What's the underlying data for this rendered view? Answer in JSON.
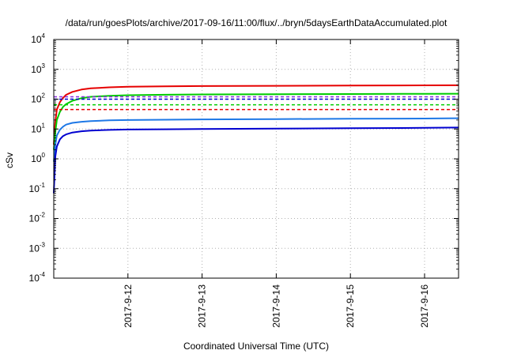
{
  "chart_data": {
    "type": "line",
    "title": "/data/run/goesPlots/archive/2017-09-16/11:00/flux/../bryn/5daysEarthDataAccumulated.plot",
    "xlabel": "Coordinated Universal Time (UTC)",
    "ylabel": "cSv",
    "yscale": "log",
    "ylim": [
      0.0001,
      10000
    ],
    "y_ticks": [
      {
        "value": 0.0001,
        "base": "10",
        "exp": "-4"
      },
      {
        "value": 0.001,
        "base": "10",
        "exp": "-3"
      },
      {
        "value": 0.01,
        "base": "10",
        "exp": "-2"
      },
      {
        "value": 0.1,
        "base": "10",
        "exp": "-1"
      },
      {
        "value": 1,
        "base": "10",
        "exp": "0"
      },
      {
        "value": 10,
        "base": "10",
        "exp": "1"
      },
      {
        "value": 100,
        "base": "10",
        "exp": "2"
      },
      {
        "value": 1000,
        "base": "10",
        "exp": "3"
      },
      {
        "value": 10000,
        "base": "10",
        "exp": "4"
      }
    ],
    "xlim": [
      "2017-09-11 00:00",
      "2017-09-16 11:00"
    ],
    "x_ticks": [
      {
        "value": "2017-09-12",
        "label": "2017-9-12"
      },
      {
        "value": "2017-09-13",
        "label": "2017-9-13"
      },
      {
        "value": "2017-09-14",
        "label": "2017-9-14"
      },
      {
        "value": "2017-09-15",
        "label": "2017-9-15"
      },
      {
        "value": "2017-09-16",
        "label": "2017-9-16"
      }
    ],
    "grid": true,
    "series": [
      {
        "color": "#e60000",
        "style": "solid",
        "x": [
          "2017-09-11 00:00",
          "2017-09-11 00:30",
          "2017-09-11 01:00",
          "2017-09-11 02:00",
          "2017-09-11 03:00",
          "2017-09-11 04:00",
          "2017-09-11 06:00",
          "2017-09-11 09:00",
          "2017-09-11 12:00",
          "2017-09-11 18:00",
          "2017-09-12 00:00",
          "2017-09-12 12:00",
          "2017-09-13 00:00",
          "2017-09-14 00:00",
          "2017-09-15 00:00",
          "2017-09-16 00:00",
          "2017-09-16 11:00"
        ],
        "y": [
          3,
          18,
          45,
          80,
          110,
          140,
          175,
          210,
          230,
          250,
          262,
          270,
          275,
          281,
          286,
          290,
          293
        ]
      },
      {
        "color": "#00cc00",
        "style": "solid",
        "x": [
          "2017-09-11 00:00",
          "2017-09-11 00:30",
          "2017-09-11 01:00",
          "2017-09-11 02:00",
          "2017-09-11 03:00",
          "2017-09-11 04:00",
          "2017-09-11 06:00",
          "2017-09-11 09:00",
          "2017-09-11 12:00",
          "2017-09-11 18:00",
          "2017-09-12 00:00",
          "2017-09-12 12:00",
          "2017-09-13 00:00",
          "2017-09-14 00:00",
          "2017-09-15 00:00",
          "2017-09-16 00:00",
          "2017-09-16 11:00"
        ],
        "y": [
          2,
          8,
          20,
          38,
          55,
          68,
          88,
          108,
          120,
          130,
          136,
          141,
          144,
          147,
          149,
          151,
          152
        ]
      },
      {
        "color": "#1e78e6",
        "style": "solid",
        "x": [
          "2017-09-11 00:00",
          "2017-09-11 00:30",
          "2017-09-11 01:00",
          "2017-09-11 02:00",
          "2017-09-11 03:00",
          "2017-09-11 04:00",
          "2017-09-11 06:00",
          "2017-09-11 09:00",
          "2017-09-11 12:00",
          "2017-09-11 18:00",
          "2017-09-12 00:00",
          "2017-09-12 12:00",
          "2017-09-13 00:00",
          "2017-09-14 00:00",
          "2017-09-15 00:00",
          "2017-09-16 00:00",
          "2017-09-16 11:00"
        ],
        "y": [
          0.8,
          3,
          6,
          9.5,
          12,
          14,
          16,
          17.5,
          18.5,
          19.5,
          20,
          20.5,
          21,
          21.5,
          22,
          22.5,
          23
        ]
      },
      {
        "color": "#0000d0",
        "style": "solid",
        "x": [
          "2017-09-11 00:00",
          "2017-09-11 00:30",
          "2017-09-11 01:00",
          "2017-09-11 02:00",
          "2017-09-11 03:00",
          "2017-09-11 04:00",
          "2017-09-11 06:00",
          "2017-09-11 09:00",
          "2017-09-11 12:00",
          "2017-09-11 18:00",
          "2017-09-12 00:00",
          "2017-09-12 12:00",
          "2017-09-13 00:00",
          "2017-09-14 00:00",
          "2017-09-15 00:00",
          "2017-09-16 00:00",
          "2017-09-16 11:00"
        ],
        "y": [
          0.07,
          1.2,
          2.6,
          4.5,
          5.8,
          6.6,
          7.6,
          8.4,
          8.9,
          9.3,
          9.6,
          9.8,
          10,
          10.3,
          10.6,
          10.9,
          11.2
        ]
      },
      {
        "color": "#8a2be2",
        "style": "dashed",
        "x": [
          "2017-09-11 00:00",
          "2017-09-16 11:00"
        ],
        "y": [
          120,
          120
        ]
      },
      {
        "color": "#0000d0",
        "style": "dashed",
        "x": [
          "2017-09-11 00:00",
          "2017-09-16 11:00"
        ],
        "y": [
          100,
          100
        ]
      },
      {
        "color": "#00cc00",
        "style": "dashed",
        "x": [
          "2017-09-11 00:00",
          "2017-09-16 11:00"
        ],
        "y": [
          65,
          65
        ]
      },
      {
        "color": "#e60000",
        "style": "dashed",
        "x": [
          "2017-09-11 00:00",
          "2017-09-16 11:00"
        ],
        "y": [
          45,
          45
        ]
      }
    ]
  }
}
